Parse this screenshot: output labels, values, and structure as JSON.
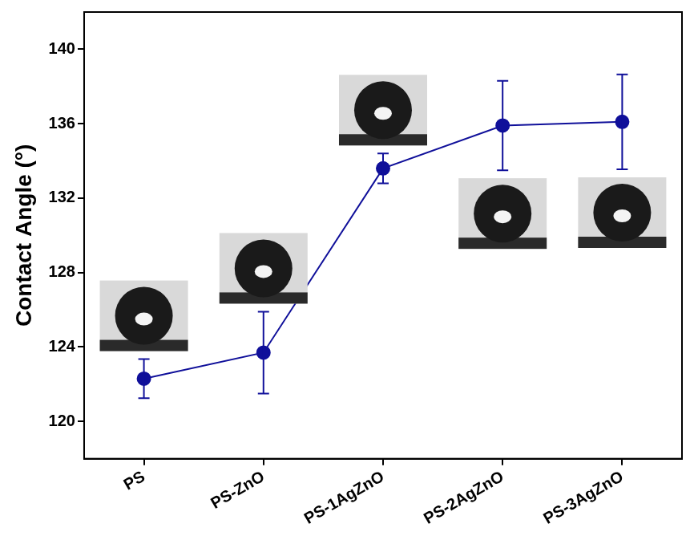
{
  "chart_data": {
    "type": "line",
    "y_label": "Contact Angle (°)",
    "categories": [
      "PS",
      "PS-ZnO",
      "PS-1AgZnO",
      "PS-2AgZnO",
      "PS-3AgZnO"
    ],
    "values": [
      122.3,
      123.7,
      133.6,
      135.9,
      136.1
    ],
    "errors": [
      1.05,
      2.2,
      0.8,
      2.4,
      2.55
    ],
    "color": "#10109a",
    "marker": "circle",
    "ylim": [
      118,
      142
    ],
    "yticks": [
      120,
      124,
      128,
      132,
      136,
      140
    ],
    "grid": false
  }
}
